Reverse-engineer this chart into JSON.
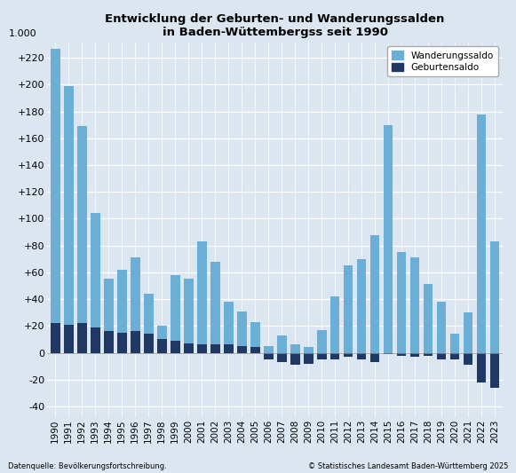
{
  "title_line1": "Entwicklung der Geburten- und Wanderungssalden",
  "title_line2": "in Baden-Wüttembergss seit 1990",
  "years": [
    1990,
    1991,
    1992,
    1993,
    1994,
    1995,
    1996,
    1997,
    1998,
    1999,
    2000,
    2001,
    2002,
    2003,
    2004,
    2005,
    2006,
    2007,
    2008,
    2009,
    2010,
    2011,
    2012,
    2013,
    2014,
    2015,
    2016,
    2017,
    2018,
    2019,
    2020,
    2021,
    2022,
    2023
  ],
  "wanderungssaldo": [
    205,
    178,
    147,
    85,
    39,
    47,
    55,
    30,
    10,
    49,
    48,
    77,
    62,
    32,
    26,
    19,
    5,
    13,
    6,
    4,
    17,
    42,
    65,
    70,
    88,
    170,
    75,
    71,
    51,
    38,
    14,
    30,
    178,
    83
  ],
  "geburtensaldo": [
    22,
    21,
    22,
    19,
    16,
    15,
    16,
    14,
    10,
    9,
    7,
    6,
    6,
    6,
    5,
    4,
    -5,
    -7,
    -9,
    -8,
    -5,
    -5,
    -3,
    -5,
    -7,
    -1,
    -2,
    -3,
    -2,
    -5,
    -5,
    -9,
    -22,
    -26
  ],
  "wanderung_color": "#6baed6",
  "geburten_color": "#1f3864",
  "background_color": "#dce6f0",
  "grid_color": "#ffffff",
  "ytick_labels": [
    "-40",
    "-20",
    "0",
    "+20",
    "+40",
    "+60",
    "+80",
    "+100",
    "+120",
    "+140",
    "+160",
    "+180",
    "+200",
    "+220"
  ],
  "ytick_values": [
    -40,
    -20,
    0,
    20,
    40,
    60,
    80,
    100,
    120,
    140,
    160,
    180,
    200,
    220
  ],
  "ylim": [
    -48,
    232
  ],
  "ylabel_unit": "1.000",
  "source_left": "Datenquelle: Bevölkerungsfortschreibung.",
  "source_right": "© Statistisches Landesamt Baden-Württemberg 2025",
  "legend_wanderung": "Wanderungssaldo",
  "legend_geburten": "Geburtensaldo"
}
